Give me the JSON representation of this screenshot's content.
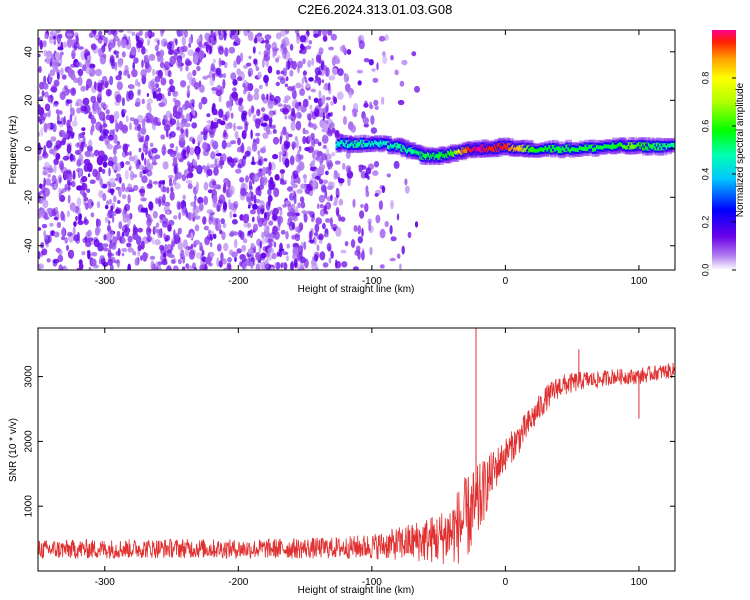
{
  "title": "C2E6.2024.313.01.03.G08",
  "chart_data": [
    {
      "type": "heatmap",
      "xlabel": "Height of straight line (km)",
      "ylabel": "Frequency (Hz)",
      "xlim": [
        -350,
        127
      ],
      "ylim": [
        -50,
        49
      ],
      "xticks": [
        -300,
        -200,
        -100,
        0,
        100
      ],
      "yticks": [
        -40,
        -20,
        0,
        20,
        40
      ],
      "colorbar": {
        "label": "Normalized spectral amplitude",
        "range": [
          0,
          1
        ],
        "ticks": [
          "0.0",
          "0.2",
          "0.4",
          "0.6",
          "0.8"
        ],
        "colormap": "rainbow (violet to red)"
      },
      "noise_region_x": [
        -350,
        -60
      ],
      "signal_track": [
        {
          "x": -125,
          "freq": 2,
          "amp": 0.45
        },
        {
          "x": -110,
          "freq": 2,
          "amp": 0.5
        },
        {
          "x": -95,
          "freq": 2,
          "amp": 0.45
        },
        {
          "x": -80,
          "freq": 1,
          "amp": 0.5
        },
        {
          "x": -70,
          "freq": -1,
          "amp": 0.5
        },
        {
          "x": -60,
          "freq": -3,
          "amp": 0.55
        },
        {
          "x": -50,
          "freq": -3,
          "amp": 0.55
        },
        {
          "x": -40,
          "freq": -2,
          "amp": 0.6
        },
        {
          "x": -30,
          "freq": -1,
          "amp": 0.9
        },
        {
          "x": -20,
          "freq": 0,
          "amp": 1.0
        },
        {
          "x": -10,
          "freq": 0,
          "amp": 0.95
        },
        {
          "x": 0,
          "freq": 1,
          "amp": 0.95
        },
        {
          "x": 10,
          "freq": 0,
          "amp": 0.85
        },
        {
          "x": 20,
          "freq": 0,
          "amp": 0.6
        },
        {
          "x": 40,
          "freq": 0,
          "amp": 0.55
        },
        {
          "x": 60,
          "freq": 0,
          "amp": 0.55
        },
        {
          "x": 80,
          "freq": 1,
          "amp": 0.55
        },
        {
          "x": 95,
          "freq": 1,
          "amp": 0.65
        },
        {
          "x": 110,
          "freq": 1,
          "amp": 0.55
        },
        {
          "x": 127,
          "freq": 1,
          "amp": 0.5
        }
      ]
    },
    {
      "type": "line",
      "xlabel": "Height of straight line (km)",
      "ylabel": "SNR (10 * v/v)",
      "xlim": [
        -350,
        127
      ],
      "ylim": [
        0,
        3750
      ],
      "xticks": [
        -300,
        -200,
        -100,
        0,
        100
      ],
      "yticks": [
        1000,
        2000,
        3000
      ],
      "color": "#e03030",
      "series": [
        {
          "x": [
            -350,
            -300,
            -250,
            -200,
            -150,
            -120,
            -100,
            -90,
            -80,
            -70,
            -60,
            -50,
            -45,
            -40,
            -35,
            -30,
            -25,
            -20,
            -15,
            -10,
            -5,
            0,
            10,
            20,
            30,
            40,
            50,
            60,
            70,
            80,
            90,
            100,
            110,
            127
          ],
          "y": [
            330,
            340,
            350,
            340,
            350,
            360,
            380,
            400,
            420,
            450,
            480,
            500,
            550,
            600,
            700,
            800,
            900,
            1050,
            1300,
            1500,
            1650,
            1800,
            2050,
            2350,
            2650,
            2850,
            2900,
            2950,
            2950,
            3000,
            3000,
            3000,
            3050,
            3100
          ],
          "noise_amplitude": [
            150,
            150,
            150,
            150,
            160,
            170,
            200,
            220,
            260,
            300,
            350,
            400,
            450,
            500,
            600,
            650,
            650,
            600,
            450,
            350,
            300,
            250,
            250,
            220,
            200,
            180,
            160,
            140,
            130,
            120,
            120,
            120,
            120,
            120
          ]
        }
      ],
      "spikes": [
        {
          "x": -22,
          "y": 3750
        },
        {
          "x": 55,
          "y": 3420
        },
        {
          "x": 100,
          "y": 2350
        }
      ]
    }
  ]
}
